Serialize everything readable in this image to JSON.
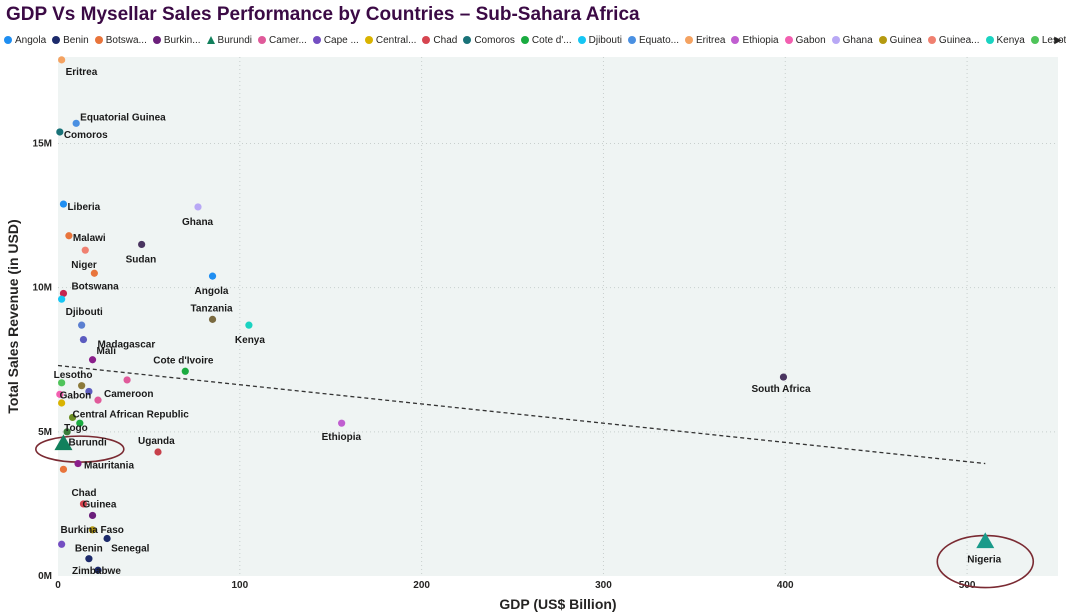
{
  "chart_data": {
    "type": "scatter",
    "title": "GDP Vs Mysellar Sales Performance by Countries – Sub-Sahara Africa",
    "xlabel": "GDP (US$ Billion)",
    "ylabel": "Total Sales Revenue (in USD)",
    "xlim": [
      0,
      550
    ],
    "ylim": [
      0,
      18000000
    ],
    "x_ticks": [
      0,
      100,
      200,
      300,
      400,
      500
    ],
    "x_tick_labels": [
      "0",
      "100",
      "200",
      "300",
      "400",
      "500"
    ],
    "y_ticks": [
      0,
      5000000,
      10000000,
      15000000
    ],
    "y_tick_labels": [
      "0M",
      "5M",
      "10M",
      "15M"
    ],
    "grid": true,
    "legend_position": "top",
    "trendline": {
      "style": "dashed",
      "color": "#333333",
      "from": [
        0,
        7300000
      ],
      "to": [
        510,
        3900000
      ]
    },
    "legend": [
      {
        "label": "Angola",
        "color": "#1f8ef1",
        "shape": "circle"
      },
      {
        "label": "Benin",
        "color": "#1c2a6b",
        "shape": "circle"
      },
      {
        "label": "Botswa...",
        "color": "#e8743b",
        "shape": "circle"
      },
      {
        "label": "Burkin...",
        "color": "#6b1f7b",
        "shape": "circle"
      },
      {
        "label": "Burundi",
        "color": "#12805c",
        "shape": "triangle"
      },
      {
        "label": "Camer...",
        "color": "#e05a9a",
        "shape": "circle"
      },
      {
        "label": "Cape ...",
        "color": "#744ec2",
        "shape": "circle"
      },
      {
        "label": "Central...",
        "color": "#d9b300",
        "shape": "circle"
      },
      {
        "label": "Chad",
        "color": "#d64550",
        "shape": "circle"
      },
      {
        "label": "Comoros",
        "color": "#197278",
        "shape": "circle"
      },
      {
        "label": "Cote d'...",
        "color": "#1aab40",
        "shape": "circle"
      },
      {
        "label": "Djibouti",
        "color": "#15c6f4",
        "shape": "circle"
      },
      {
        "label": "Equato...",
        "color": "#4a90e2",
        "shape": "circle"
      },
      {
        "label": "Eritrea",
        "color": "#f4a261",
        "shape": "circle"
      },
      {
        "label": "Ethiopia",
        "color": "#c05ed0",
        "shape": "circle"
      },
      {
        "label": "Gabon",
        "color": "#f25fb0",
        "shape": "circle"
      },
      {
        "label": "Ghana",
        "color": "#b8a8f5",
        "shape": "circle"
      },
      {
        "label": "Guinea",
        "color": "#b59a10",
        "shape": "circle"
      },
      {
        "label": "Guinea...",
        "color": "#f08070",
        "shape": "circle"
      },
      {
        "label": "Kenya",
        "color": "#1ad3c1",
        "shape": "circle"
      },
      {
        "label": "Lesotho",
        "color": "#4fc45a",
        "shape": "circle"
      }
    ],
    "points": [
      {
        "label": "Eritrea",
        "x": 2,
        "y": 17900000,
        "color": "#f4a261",
        "lx": 4,
        "ly": 15
      },
      {
        "label": "Equatorial Guinea",
        "x": 10,
        "y": 15700000,
        "color": "#4a90e2",
        "lx": 4,
        "ly": -3
      },
      {
        "label": "Comoros",
        "x": 1,
        "y": 15400000,
        "color": "#197278",
        "lx": 4,
        "ly": 6
      },
      {
        "label": "Liberia",
        "x": 3,
        "y": 12900000,
        "color": "#1f8ef1",
        "lx": 4,
        "ly": 6
      },
      {
        "label": "Ghana",
        "x": 77,
        "y": 12800000,
        "color": "#b8a8f5",
        "lx": -16,
        "ly": 18
      },
      {
        "label": "Malawi",
        "x": 6,
        "y": 11800000,
        "color": "#e8743b",
        "lx": 4,
        "ly": 5
      },
      {
        "label": "Sudan",
        "x": 46,
        "y": 11500000,
        "color": "#4a3560",
        "lx": -16,
        "ly": 18
      },
      {
        "label": "Niger",
        "x": 15,
        "y": 11300000,
        "color": "#f08070",
        "lx": -14,
        "ly": 18
      },
      {
        "label": "",
        "x": 20,
        "y": 10500000,
        "color": "#e8743b",
        "lx": 0,
        "ly": 0
      },
      {
        "label": "Angola",
        "x": 85,
        "y": 10400000,
        "color": "#1f8ef1",
        "lx": -18,
        "ly": 18
      },
      {
        "label": "Botswana",
        "x": 3,
        "y": 9800000,
        "color": "#c7254e",
        "lx": 8,
        "ly": -4
      },
      {
        "label": "",
        "x": 2,
        "y": 9600000,
        "color": "#15c6f4",
        "lx": 0,
        "ly": 0
      },
      {
        "label": "Djibouti",
        "x": 13,
        "y": 8700000,
        "color": "#5b7fd1",
        "lx": -16,
        "ly": -10
      },
      {
        "label": "Tanzania",
        "x": 85,
        "y": 8900000,
        "color": "#7a6a40",
        "lx": -22,
        "ly": -8
      },
      {
        "label": "Kenya",
        "x": 105,
        "y": 8700000,
        "color": "#1ad3c1",
        "lx": -14,
        "ly": 18
      },
      {
        "label": "Madagascar",
        "x": 14,
        "y": 8200000,
        "color": "#5b5bbf",
        "lx": 14,
        "ly": 8
      },
      {
        "label": "Mali",
        "x": 19,
        "y": 7500000,
        "color": "#8b1f8b",
        "lx": 4,
        "ly": -6
      },
      {
        "label": "Cote d'Ivoire",
        "x": 70,
        "y": 7100000,
        "color": "#1aab40",
        "lx": -32,
        "ly": -8
      },
      {
        "label": "Lesotho",
        "x": 2,
        "y": 6700000,
        "color": "#4fc45a",
        "lx": -8,
        "ly": -5
      },
      {
        "label": "",
        "x": 38,
        "y": 6800000,
        "color": "#e05a9a",
        "lx": 0,
        "ly": 0
      },
      {
        "label": "Gabon",
        "x": 13,
        "y": 6600000,
        "color": "#8c7a3a",
        "lx": -22,
        "ly": 13
      },
      {
        "label": "",
        "x": 1,
        "y": 6300000,
        "color": "#f25fb0",
        "lx": 0,
        "ly": 0
      },
      {
        "label": "Cameroon",
        "x": 22,
        "y": 6100000,
        "color": "#e05a9a",
        "lx": 6,
        "ly": -3
      },
      {
        "label": "",
        "x": 17,
        "y": 6400000,
        "color": "#5b5bbf",
        "lx": 0,
        "ly": 0
      },
      {
        "label": "",
        "x": 2,
        "y": 6000000,
        "color": "#d9b300",
        "lx": 0,
        "ly": 0
      },
      {
        "label": "Central African Republic",
        "x": 8,
        "y": 5500000,
        "color": "#6b8e23",
        "lx": 0,
        "ly": 0
      },
      {
        "label": "",
        "x": 12,
        "y": 5300000,
        "color": "#1aab40",
        "lx": 0,
        "ly": 0
      },
      {
        "label": "Togo",
        "x": 5,
        "y": 5000000,
        "color": "#3a7d3a",
        "lx": -3,
        "ly": -1
      },
      {
        "label": "Burundi",
        "x": 3,
        "y": 4600000,
        "color": "#12805c",
        "shape": "triangle",
        "lx": 5,
        "ly": 2
      },
      {
        "label": "Uganda",
        "x": 55,
        "y": 4300000,
        "color": "#c7404a",
        "lx": -20,
        "ly": -8
      },
      {
        "label": "Ethiopia",
        "x": 156,
        "y": 5300000,
        "color": "#c05ed0",
        "lx": -20,
        "ly": 17
      },
      {
        "label": "Mauritania",
        "x": 11,
        "y": 3900000,
        "color": "#8b1f8b",
        "lx": 6,
        "ly": 5
      },
      {
        "label": "",
        "x": 3,
        "y": 3700000,
        "color": "#e8743b",
        "lx": 0,
        "ly": 0
      },
      {
        "label": "South Africa",
        "x": 399,
        "y": 6900000,
        "color": "#4a3560",
        "lx": -32,
        "ly": 15
      },
      {
        "label": "Chad",
        "x": 14,
        "y": 2500000,
        "color": "#d64550",
        "lx": -12,
        "ly": -8
      },
      {
        "label": "Guinea",
        "x": 19,
        "y": 2100000,
        "color": "#6b1f7b",
        "lx": -10,
        "ly": -8
      },
      {
        "label": "Burkina Faso",
        "x": 19,
        "y": 1600000,
        "color": "#b59a10",
        "lx": -32,
        "ly": 3
      },
      {
        "label": "",
        "x": 2,
        "y": 1100000,
        "color": "#744ec2",
        "lx": 0,
        "ly": 0
      },
      {
        "label": "Senegal",
        "x": 27,
        "y": 1300000,
        "color": "#1c2a6b",
        "lx": 4,
        "ly": 13
      },
      {
        "label": "Benin",
        "x": 17,
        "y": 600000,
        "color": "#1c2a6b",
        "lx": -14,
        "ly": -7
      },
      {
        "label": "Zimbabwe",
        "x": 22,
        "y": 200000,
        "color": "#1c2a6b",
        "lx": -26,
        "ly": 4
      },
      {
        "label": "Nigeria",
        "x": 510,
        "y": 1200000,
        "color": "#1a9a8a",
        "shape": "triangle",
        "lx": -18,
        "ly": 21
      }
    ],
    "highlight_ellipses": [
      {
        "x": 12,
        "y": 4400000,
        "color": "#7a2a32"
      },
      {
        "x": 510,
        "y": 500000,
        "color": "#7a2a32"
      }
    ]
  }
}
